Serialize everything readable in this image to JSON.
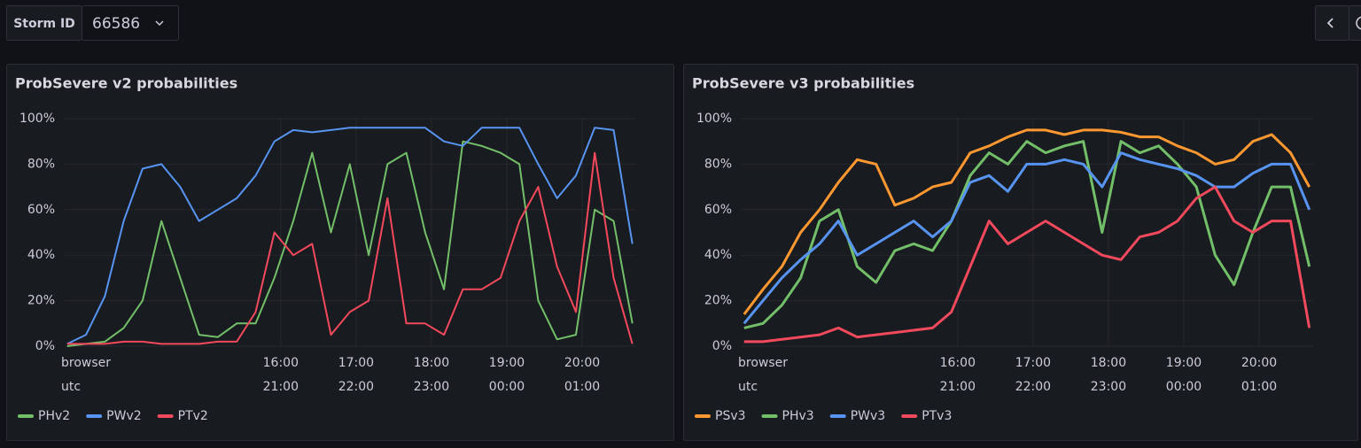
{
  "toolbar": {
    "label": "Storm ID",
    "value": "66586"
  },
  "chart_data": [
    {
      "type": "line",
      "title": "ProbSevere v2 probabilities",
      "x": [
        "13:10",
        "13:25",
        "13:40",
        "13:55",
        "14:10",
        "14:25",
        "14:40",
        "14:55",
        "15:10",
        "15:25",
        "15:40",
        "15:55",
        "16:10",
        "16:25",
        "16:40",
        "16:55",
        "17:10",
        "17:25",
        "17:40",
        "17:55",
        "18:10",
        "18:25",
        "18:40",
        "18:55",
        "19:10",
        "19:25",
        "19:40",
        "19:55",
        "20:10",
        "20:25",
        "20:40"
      ],
      "xlim": [
        "13:08",
        "20:43"
      ],
      "xtick_rows": [
        {
          "name": "browser",
          "ticks": [
            "16:00",
            "17:00",
            "18:00",
            "19:00",
            "20:00"
          ]
        },
        {
          "name": "utc",
          "ticks": [
            "21:00",
            "22:00",
            "23:00",
            "00:00",
            "01:00"
          ]
        }
      ],
      "ylim": [
        0,
        100
      ],
      "yticks": [
        {
          "value": 0,
          "label": "0%"
        },
        {
          "value": 20,
          "label": "20%"
        },
        {
          "value": 40,
          "label": "40%"
        },
        {
          "value": 60,
          "label": "60%"
        },
        {
          "value": 80,
          "label": "80%"
        },
        {
          "value": 100,
          "label": "100%"
        }
      ],
      "grid": true,
      "series": [
        {
          "name": "PHv2",
          "color": "#73bf69",
          "values": [
            0,
            1,
            2,
            8,
            20,
            55,
            30,
            5,
            4,
            10,
            10,
            30,
            55,
            85,
            50,
            80,
            40,
            80,
            85,
            50,
            25,
            90,
            88,
            85,
            80,
            20,
            3,
            5,
            60,
            55,
            10
          ]
        },
        {
          "name": "PWv2",
          "color": "#5794f2",
          "values": [
            1,
            5,
            22,
            55,
            78,
            80,
            70,
            55,
            60,
            65,
            75,
            90,
            95,
            94,
            95,
            96,
            96,
            96,
            96,
            96,
            90,
            88,
            96,
            96,
            96,
            80,
            65,
            75,
            96,
            95,
            45
          ]
        },
        {
          "name": "PTv2",
          "color": "#f2495c",
          "values": [
            1,
            1,
            1,
            2,
            2,
            1,
            1,
            1,
            2,
            2,
            15,
            50,
            40,
            45,
            5,
            15,
            20,
            65,
            10,
            10,
            5,
            25,
            25,
            30,
            55,
            70,
            35,
            15,
            85,
            30,
            1
          ]
        }
      ]
    },
    {
      "type": "line",
      "title": "ProbSevere v3 probabilities",
      "x": [
        "13:10",
        "13:25",
        "13:40",
        "13:55",
        "14:10",
        "14:25",
        "14:40",
        "14:55",
        "15:10",
        "15:25",
        "15:40",
        "15:55",
        "16:10",
        "16:25",
        "16:40",
        "16:55",
        "17:10",
        "17:25",
        "17:40",
        "17:55",
        "18:10",
        "18:25",
        "18:40",
        "18:55",
        "19:10",
        "19:25",
        "19:40",
        "19:55",
        "20:10",
        "20:25",
        "20:40"
      ],
      "xlim": [
        "13:08",
        "20:43"
      ],
      "xtick_rows": [
        {
          "name": "browser",
          "ticks": [
            "16:00",
            "17:00",
            "18:00",
            "19:00",
            "20:00"
          ]
        },
        {
          "name": "utc",
          "ticks": [
            "21:00",
            "22:00",
            "23:00",
            "00:00",
            "01:00"
          ]
        }
      ],
      "ylim": [
        0,
        100
      ],
      "yticks": [
        {
          "value": 0,
          "label": "0%"
        },
        {
          "value": 20,
          "label": "20%"
        },
        {
          "value": 40,
          "label": "40%"
        },
        {
          "value": 60,
          "label": "60%"
        },
        {
          "value": 80,
          "label": "80%"
        },
        {
          "value": 100,
          "label": "100%"
        }
      ],
      "grid": true,
      "series": [
        {
          "name": "PSv3",
          "color": "#ff9830",
          "values": [
            14,
            25,
            35,
            50,
            60,
            72,
            82,
            80,
            62,
            65,
            70,
            72,
            85,
            88,
            92,
            95,
            95,
            93,
            95,
            95,
            94,
            92,
            92,
            88,
            85,
            80,
            82,
            90,
            93,
            85,
            70
          ]
        },
        {
          "name": "PHv3",
          "color": "#73bf69",
          "values": [
            8,
            10,
            18,
            30,
            55,
            60,
            35,
            28,
            42,
            45,
            42,
            55,
            75,
            85,
            80,
            90,
            85,
            88,
            90,
            50,
            90,
            85,
            88,
            80,
            70,
            40,
            27,
            50,
            70,
            70,
            35
          ]
        },
        {
          "name": "PWv3",
          "color": "#5794f2",
          "values": [
            10,
            20,
            30,
            38,
            45,
            55,
            40,
            45,
            50,
            55,
            48,
            55,
            72,
            75,
            68,
            80,
            80,
            82,
            80,
            70,
            85,
            82,
            80,
            78,
            75,
            70,
            70,
            76,
            80,
            80,
            60
          ]
        },
        {
          "name": "PTv3",
          "color": "#f2495c",
          "values": [
            2,
            2,
            3,
            4,
            5,
            8,
            4,
            5,
            6,
            7,
            8,
            15,
            35,
            55,
            45,
            50,
            55,
            50,
            45,
            40,
            38,
            48,
            50,
            55,
            65,
            70,
            55,
            50,
            55,
            55,
            8
          ]
        }
      ]
    }
  ]
}
